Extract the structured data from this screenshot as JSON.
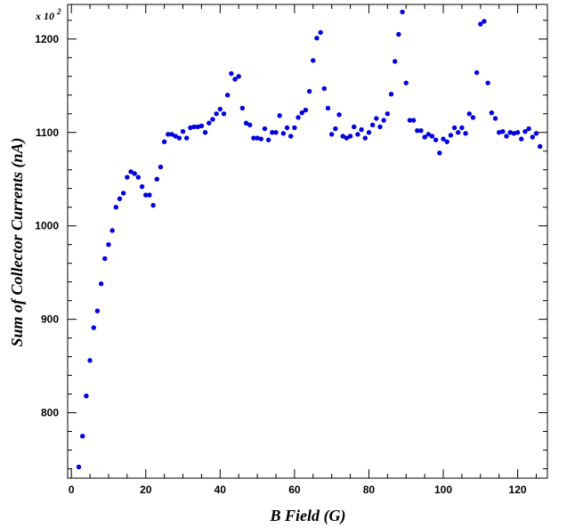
{
  "chart_data": {
    "type": "scatter",
    "xlabel": "B Field (G)",
    "ylabel": "Sum of Collector Currents (nA)",
    "y_multiplier_label": "x 10",
    "y_multiplier_exponent": "2",
    "xlim": [
      -1,
      128
    ],
    "ylim": [
      730,
      1237
    ],
    "x_ticks": [
      0,
      20,
      40,
      60,
      80,
      100,
      120
    ],
    "y_ticks": [
      800,
      900,
      1000,
      1100,
      1200
    ],
    "grid": false,
    "marker_color": "#0000dd",
    "series": [
      {
        "x": [
          2,
          3,
          4,
          5,
          6,
          7,
          8,
          9,
          10,
          11,
          12,
          13,
          14,
          15,
          16,
          17,
          18,
          19,
          20,
          21,
          22,
          23,
          24,
          25,
          26,
          27,
          28,
          29,
          30,
          31,
          32,
          33,
          34,
          35,
          36,
          37,
          38,
          39,
          40,
          41,
          42,
          43,
          44,
          45,
          46,
          47,
          48,
          49,
          50,
          51,
          52,
          53,
          54,
          55,
          56,
          57,
          58,
          59,
          60,
          61,
          62,
          63,
          64,
          65,
          66,
          67,
          68,
          69,
          70,
          71,
          72,
          73,
          74,
          75,
          76,
          77,
          78,
          79,
          80,
          81,
          82,
          83,
          84,
          85,
          86,
          87,
          88,
          89,
          90,
          91,
          92,
          93,
          94,
          95,
          96,
          97,
          98,
          99,
          100,
          101,
          102,
          103,
          104,
          105,
          106,
          107,
          108,
          109,
          110,
          111,
          112,
          113,
          114,
          115,
          116,
          117,
          118,
          119,
          120,
          121,
          122,
          123,
          124,
          125,
          126
        ],
        "y": [
          742,
          775,
          818,
          856,
          891,
          909,
          938,
          965,
          980,
          995,
          1020,
          1029,
          1035,
          1052,
          1058,
          1056,
          1052,
          1042,
          1033,
          1033,
          1022,
          1050,
          1063,
          1090,
          1098,
          1098,
          1096,
          1094,
          1101,
          1094,
          1105,
          1106,
          1106,
          1107,
          1100,
          1110,
          1114,
          1120,
          1125,
          1120,
          1140,
          1163,
          1157,
          1160,
          1126,
          1110,
          1108,
          1094,
          1094,
          1093,
          1104,
          1092,
          1100,
          1100,
          1118,
          1099,
          1105,
          1096,
          1105,
          1116,
          1121,
          1124,
          1144,
          1177,
          1201,
          1207,
          1147,
          1126,
          1098,
          1104,
          1119,
          1096,
          1094,
          1096,
          1106,
          1098,
          1103,
          1094,
          1100,
          1108,
          1115,
          1106,
          1113,
          1120,
          1141,
          1176,
          1205,
          1229,
          1153,
          1113,
          1113,
          1102,
          1102,
          1095,
          1098,
          1096,
          1092,
          1078,
          1093,
          1090,
          1097,
          1105,
          1100,
          1105,
          1099,
          1120,
          1116,
          1164,
          1216,
          1219,
          1153,
          1121,
          1115,
          1100,
          1101,
          1096,
          1100,
          1099,
          1100,
          1093,
          1101,
          1104,
          1095,
          1099,
          1085
        ]
      }
    ]
  }
}
